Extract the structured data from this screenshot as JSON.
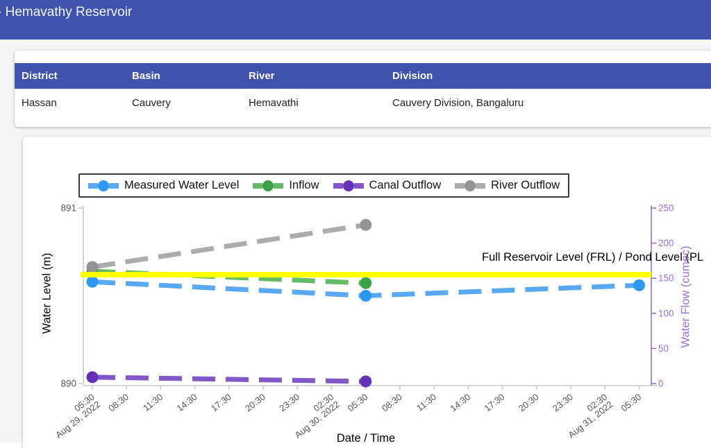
{
  "header": {
    "title": "- Hemavathy Reservoir"
  },
  "info_table": {
    "columns": [
      "District",
      "Basin",
      "River",
      "Division"
    ],
    "rows": [
      [
        "Hassan",
        "Cauvery",
        "Hemavathi",
        "Cauvery Division, Bangaluru"
      ]
    ]
  },
  "chart_data": {
    "type": "line",
    "xlabel": "Date / Time",
    "ylabel_left": "Water Level (m)",
    "ylabel_right": "Water Flow (cumec)",
    "left_axis": {
      "min": 890,
      "max": 891,
      "ticks": [
        890,
        891
      ]
    },
    "right_axis": {
      "min": 0,
      "max": 250,
      "ticks": [
        0,
        50,
        100,
        150,
        200,
        250
      ]
    },
    "x_ticks": [
      {
        "time": "05:30",
        "date": "Aug 29, 2022"
      },
      {
        "time": "08:30"
      },
      {
        "time": "11:30"
      },
      {
        "time": "14:30"
      },
      {
        "time": "17:30"
      },
      {
        "time": "20:30"
      },
      {
        "time": "23:30"
      },
      {
        "time": "02:30",
        "date": "Aug 30, 2022"
      },
      {
        "time": "05:30"
      },
      {
        "time": "08:30"
      },
      {
        "time": "11:30"
      },
      {
        "time": "14:30"
      },
      {
        "time": "17:30"
      },
      {
        "time": "20:30"
      },
      {
        "time": "23:30"
      },
      {
        "time": "02:30",
        "date": "Aug 31, 2022"
      },
      {
        "time": "05:30"
      }
    ],
    "legend_position": "top",
    "grid": false,
    "series": [
      {
        "name": "Measured Water Level",
        "axis": "left",
        "color_line": "#58a9f1",
        "color_dot": "#2e97f2",
        "points": [
          {
            "i": 0,
            "v": 890.58
          },
          {
            "i": 8,
            "v": 890.5
          },
          {
            "i": 16,
            "v": 890.56
          }
        ]
      },
      {
        "name": "Inflow",
        "axis": "right",
        "color_line": "#63bb67",
        "color_dot": "#3ca047",
        "points": [
          {
            "i": 0,
            "v": 160
          },
          {
            "i": 8,
            "v": 143
          }
        ]
      },
      {
        "name": "Canal Outflow",
        "axis": "right",
        "color_line": "#8257c9",
        "color_dot": "#6531b8",
        "points": [
          {
            "i": 0,
            "v": 9
          },
          {
            "i": 8,
            "v": 3
          }
        ]
      },
      {
        "name": "River Outflow",
        "axis": "right",
        "color_line": "#acacac",
        "color_dot": "#939393",
        "points": [
          {
            "i": 0,
            "v": 166
          },
          {
            "i": 8,
            "v": 226
          }
        ]
      }
    ],
    "frl_line": {
      "label": "Full Reservoir Level (FRL) / Pond Level (PL",
      "value": 890.62,
      "color": "#ffff00"
    }
  }
}
